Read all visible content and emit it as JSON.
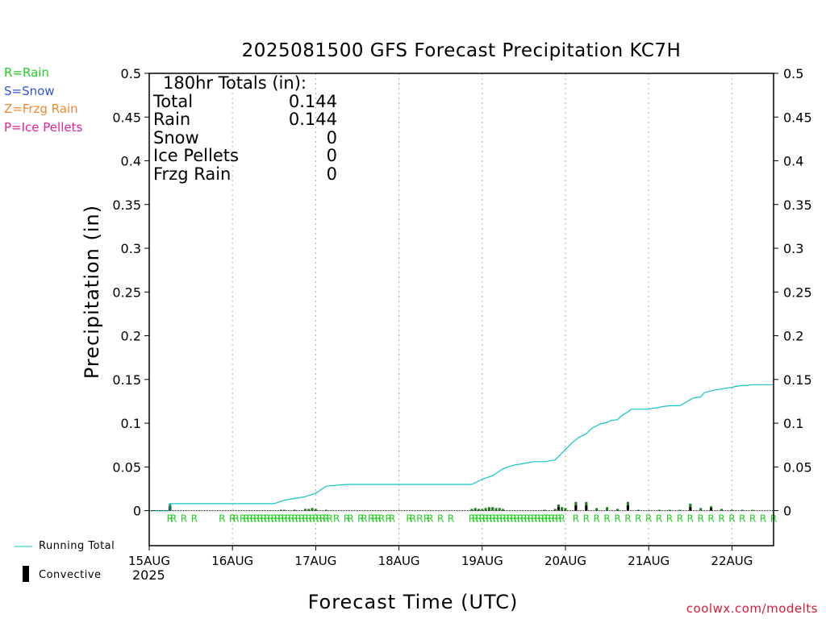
{
  "title": "2025081500 GFS Forecast Precipitation KC7H",
  "type_legend": [
    {
      "label": "R=Rain",
      "color": "#22cc22"
    },
    {
      "label": "S=Snow",
      "color": "#3355dd"
    },
    {
      "label": "Z=Frzg Rain",
      "color": "#ee8833"
    },
    {
      "label": "P=Ice Pellets",
      "color": "#e0209c"
    }
  ],
  "totals": {
    "header": "180hr Totals (in):",
    "rows": [
      {
        "label": "Total",
        "value": "0.144"
      },
      {
        "label": "Rain",
        "value": "0.144"
      },
      {
        "label": "Snow",
        "value": "0"
      },
      {
        "label": "Ice Pellets",
        "value": "0"
      },
      {
        "label": "Frzg Rain",
        "value": "0"
      }
    ]
  },
  "bottom_legend": {
    "running_total": "Running Total",
    "convective": "Convective"
  },
  "credit": "coolwx.com/modelts",
  "colors": {
    "running_total": "#13c4c4",
    "precip_bar": "#1a7a1a",
    "convective_bar": "#000000",
    "rain_marker": "#22cc22"
  },
  "chart_data": {
    "type": "bar",
    "title": "2025081500 GFS Forecast Precipitation KC7H",
    "xlabel": "Forecast Time (UTC)",
    "ylabel": "Precipitation (in)",
    "year_label": "2025",
    "ylim": [
      -0.04,
      0.5
    ],
    "xlim_hours": [
      0,
      180
    ],
    "y_ticks": [
      0,
      0.05,
      0.1,
      0.15,
      0.2,
      0.25,
      0.3,
      0.35,
      0.4,
      0.45,
      0.5
    ],
    "y_tick_labels": [
      "0",
      "0.05",
      "0.1",
      "0.15",
      "0.2",
      "0.25",
      "0.3",
      "0.35",
      "0.4",
      "0.45",
      "0.5"
    ],
    "x_ticks": [
      {
        "hour": 0,
        "label": "15AUG"
      },
      {
        "hour": 24,
        "label": "16AUG"
      },
      {
        "hour": 48,
        "label": "17AUG"
      },
      {
        "hour": 72,
        "label": "18AUG"
      },
      {
        "hour": 96,
        "label": "19AUG"
      },
      {
        "hour": 120,
        "label": "20AUG"
      },
      {
        "hour": 144,
        "label": "21AUG"
      },
      {
        "hour": 168,
        "label": "22AUG"
      }
    ],
    "grid": "vertical dotted at day boundaries",
    "running_total": {
      "name": "Running Total",
      "x_hours": [
        0,
        6,
        6,
        9,
        36,
        39,
        42,
        45,
        48,
        51,
        57,
        93,
        96,
        99,
        102,
        105,
        108,
        111,
        114,
        117,
        118,
        119,
        120,
        121,
        122,
        123,
        124,
        125,
        126,
        127,
        128,
        129,
        130,
        132,
        133,
        135,
        136,
        138,
        139,
        141,
        142,
        144,
        145,
        147,
        148,
        150,
        151,
        153,
        156,
        157,
        159,
        160,
        162,
        163,
        165,
        166,
        168,
        169,
        171,
        172,
        174,
        177,
        180
      ],
      "y_values": [
        0,
        0,
        0.008,
        0.008,
        0.008,
        0.012,
        0.014,
        0.016,
        0.02,
        0.028,
        0.03,
        0.03,
        0.036,
        0.04,
        0.048,
        0.052,
        0.054,
        0.056,
        0.056,
        0.058,
        0.062,
        0.066,
        0.07,
        0.074,
        0.078,
        0.081,
        0.084,
        0.086,
        0.088,
        0.092,
        0.095,
        0.097,
        0.099,
        0.101,
        0.103,
        0.104,
        0.108,
        0.113,
        0.116,
        0.116,
        0.116,
        0.116,
        0.117,
        0.118,
        0.119,
        0.12,
        0.12,
        0.12,
        0.127,
        0.129,
        0.13,
        0.135,
        0.137,
        0.138,
        0.139,
        0.14,
        0.141,
        0.142,
        0.143,
        0.143,
        0.144,
        0.144,
        0.144
      ]
    },
    "precip_bars": {
      "name": "Precipitation",
      "x_hours": [
        6,
        38,
        39,
        42,
        45,
        46,
        47,
        48,
        51,
        93,
        94,
        95,
        96,
        97,
        98,
        99,
        100,
        101,
        102,
        114,
        117,
        118,
        119,
        120,
        123,
        126,
        129,
        132,
        135,
        138,
        141,
        144,
        147,
        150,
        153,
        156,
        159,
        162,
        165,
        168,
        171,
        174
      ],
      "values": [
        0.008,
        0.001,
        0.001,
        0.001,
        0.002,
        0.002,
        0.003,
        0.002,
        0.001,
        0.002,
        0.003,
        0.002,
        0.002,
        0.003,
        0.004,
        0.004,
        0.003,
        0.003,
        0.002,
        0.001,
        0.002,
        0.007,
        0.004,
        0.003,
        0.01,
        0.01,
        0.003,
        0.004,
        0.002,
        0.01,
        0.001,
        0.0,
        0.001,
        0.001,
        0.001,
        0.008,
        0.003,
        0.005,
        0.002,
        0.001,
        0.001,
        0.001
      ]
    },
    "convective_bars": {
      "name": "Convective",
      "x_hours": [
        6,
        118,
        123,
        126,
        138,
        156,
        162
      ],
      "values": [
        0.005,
        0.004,
        0.006,
        0.006,
        0.006,
        0.004,
        0.003
      ]
    },
    "rain_markers": {
      "letter": "R",
      "x_hours": [
        6,
        7,
        10,
        13,
        21,
        24,
        25,
        27,
        28,
        29,
        30,
        31,
        32,
        33,
        34,
        35,
        36,
        37,
        38,
        39,
        40,
        41,
        42,
        43,
        44,
        45,
        46,
        47,
        48,
        49,
        50,
        51,
        52,
        54,
        57,
        58,
        61,
        62,
        64,
        65,
        66,
        67,
        69,
        70,
        75,
        76,
        78,
        80,
        81,
        84,
        87,
        93,
        94,
        95,
        96,
        97,
        98,
        99,
        100,
        101,
        102,
        103,
        104,
        105,
        106,
        107,
        108,
        109,
        110,
        111,
        112,
        113,
        114,
        115,
        116,
        117,
        118,
        119,
        123,
        126,
        129,
        132,
        135,
        138,
        141,
        144,
        147,
        150,
        153,
        156,
        159,
        162,
        165,
        168,
        171,
        174,
        177,
        180
      ]
    }
  }
}
